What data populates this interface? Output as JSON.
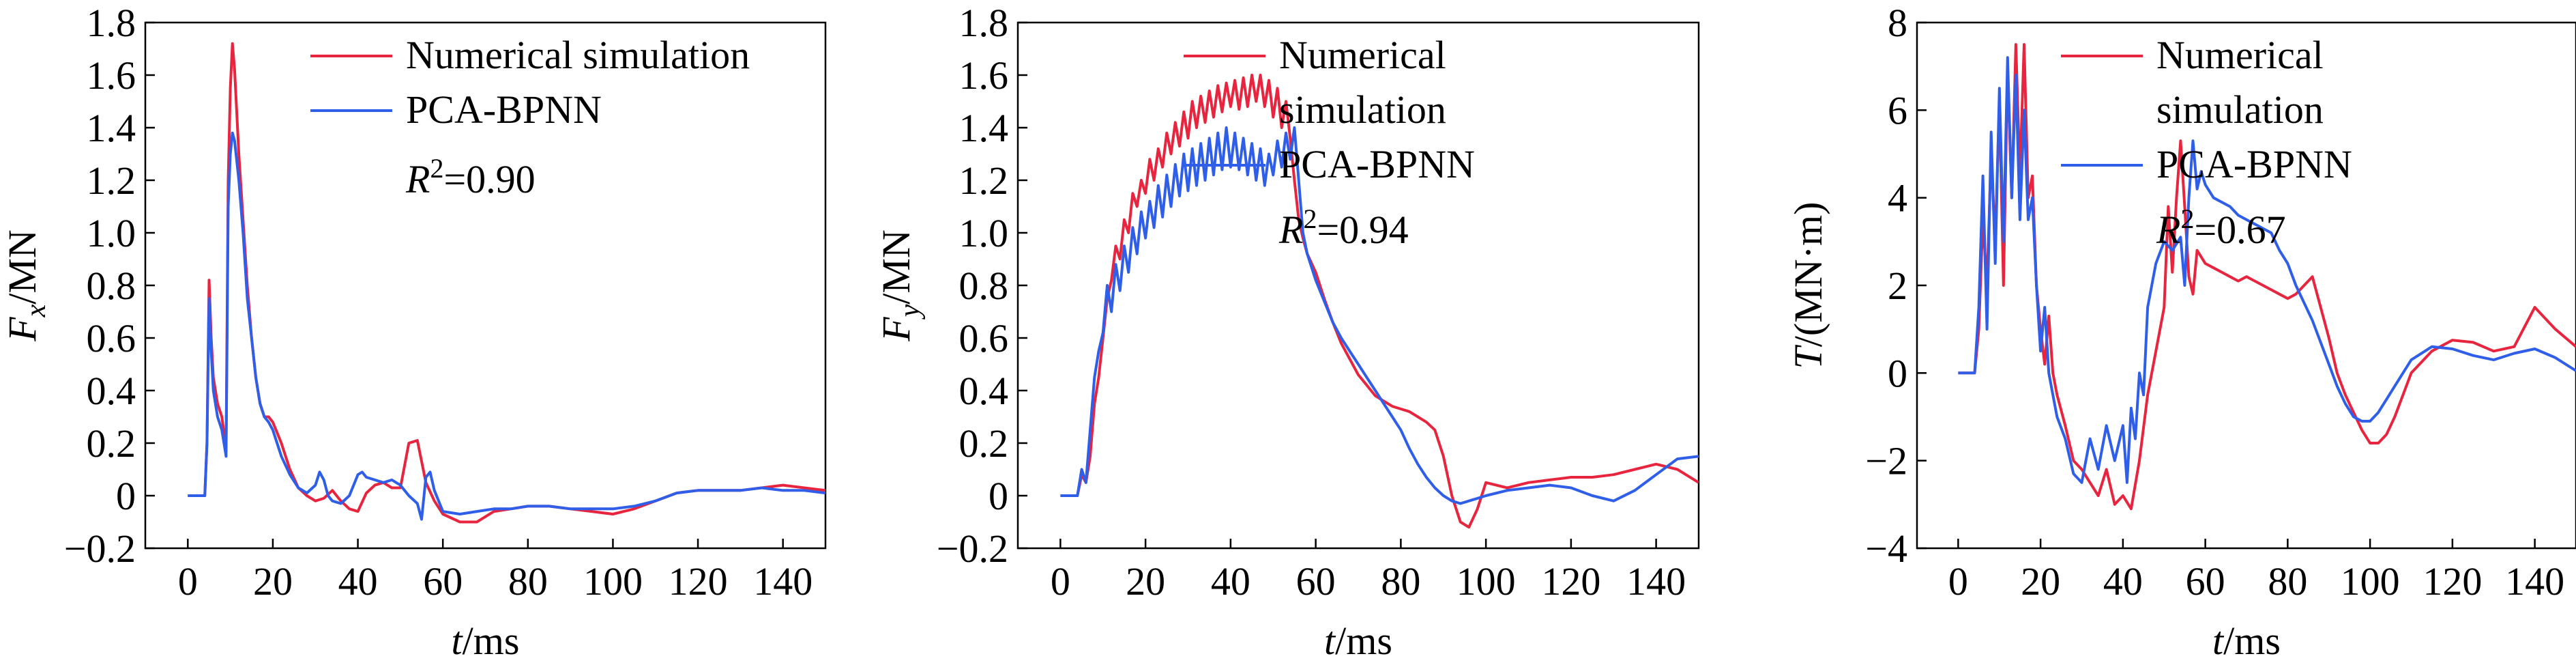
{
  "colors": {
    "simulation": "#e8253f",
    "bpnn": "#2f5ee8",
    "axis": "#000000"
  },
  "chart_data": [
    {
      "type": "line",
      "ylabel": {
        "main": "F",
        "sub": "x",
        "unit": "/MN"
      },
      "xlabel": {
        "main": "t",
        "unit": "/ms"
      },
      "xlim": [
        -10,
        150
      ],
      "ylim": [
        -0.2,
        1.8
      ],
      "xticks": [
        0,
        20,
        40,
        60,
        80,
        100,
        120,
        140
      ],
      "yticks": [
        -0.2,
        0,
        0.2,
        0.4,
        0.6,
        0.8,
        1.0,
        1.2,
        1.4,
        1.6,
        1.8
      ],
      "ytick_labels": [
        "−0.2",
        "0",
        "0.2",
        "0.4",
        "0.6",
        "0.8",
        "1.0",
        "1.2",
        "1.4",
        "1.6",
        "1.8"
      ],
      "legend_position": "top-right",
      "r2": {
        "prefix": "R",
        "sup": "2",
        "value": "=0.90"
      },
      "series": [
        {
          "name": "Numerical simulation",
          "color_key": "simulation",
          "x": [
            0,
            4,
            4.5,
            5,
            5.5,
            6,
            7,
            8,
            9,
            9.5,
            10,
            10.5,
            11,
            12,
            13,
            14,
            15,
            16,
            17,
            18,
            19,
            20,
            22,
            24,
            26,
            28,
            30,
            32,
            34,
            36,
            38,
            40,
            42,
            44,
            46,
            48,
            50,
            52,
            54,
            56,
            58,
            60,
            64,
            68,
            72,
            76,
            80,
            85,
            90,
            95,
            100,
            105,
            110,
            115,
            120,
            125,
            130,
            135,
            140,
            145,
            150
          ],
          "y": [
            0,
            0,
            0.2,
            0.82,
            0.6,
            0.45,
            0.35,
            0.3,
            0.18,
            1.2,
            1.55,
            1.72,
            1.62,
            1.3,
            1.05,
            0.8,
            0.6,
            0.45,
            0.35,
            0.3,
            0.3,
            0.28,
            0.2,
            0.1,
            0.03,
            0.0,
            -0.02,
            -0.01,
            0.02,
            -0.02,
            -0.05,
            -0.06,
            0.01,
            0.04,
            0.05,
            0.03,
            0.03,
            0.2,
            0.21,
            0.05,
            -0.02,
            -0.07,
            -0.1,
            -0.1,
            -0.06,
            -0.05,
            -0.04,
            -0.04,
            -0.05,
            -0.06,
            -0.07,
            -0.05,
            -0.02,
            0.01,
            0.02,
            0.02,
            0.02,
            0.03,
            0.04,
            0.03,
            0.02
          ]
        },
        {
          "name": "PCA-BPNN",
          "color_key": "bpnn",
          "x": [
            0,
            4,
            4.5,
            5,
            5.5,
            6,
            7,
            8,
            9,
            9.5,
            10,
            10.5,
            11,
            12,
            13,
            14,
            15,
            16,
            17,
            18,
            19,
            20,
            22,
            24,
            26,
            28,
            30,
            31,
            32,
            33,
            34,
            36,
            38,
            40,
            41,
            42,
            44,
            46,
            48,
            50,
            52,
            54,
            55,
            56,
            57,
            58,
            60,
            64,
            68,
            72,
            76,
            80,
            85,
            90,
            95,
            100,
            105,
            110,
            115,
            120,
            125,
            130,
            135,
            140,
            145,
            150
          ],
          "y": [
            0,
            0,
            0.2,
            0.75,
            0.55,
            0.4,
            0.3,
            0.25,
            0.15,
            1.1,
            1.3,
            1.38,
            1.35,
            1.2,
            1.0,
            0.75,
            0.6,
            0.45,
            0.35,
            0.3,
            0.28,
            0.25,
            0.15,
            0.08,
            0.03,
            0.01,
            0.04,
            0.09,
            0.06,
            0.0,
            -0.02,
            -0.03,
            0.0,
            0.08,
            0.09,
            0.07,
            0.06,
            0.05,
            0.06,
            0.04,
            0.0,
            -0.03,
            -0.09,
            0.07,
            0.09,
            0.02,
            -0.06,
            -0.07,
            -0.06,
            -0.05,
            -0.05,
            -0.04,
            -0.04,
            -0.05,
            -0.05,
            -0.05,
            -0.04,
            -0.02,
            0.01,
            0.02,
            0.02,
            0.02,
            0.03,
            0.02,
            0.02,
            0.01
          ]
        }
      ]
    },
    {
      "type": "line",
      "ylabel": {
        "main": "F",
        "sub": "y",
        "unit": "/MN"
      },
      "xlabel": {
        "main": "t",
        "unit": "/ms"
      },
      "xlim": [
        -10,
        150
      ],
      "ylim": [
        -0.2,
        1.8
      ],
      "xticks": [
        0,
        20,
        40,
        60,
        80,
        100,
        120,
        140
      ],
      "yticks": [
        -0.2,
        0,
        0.2,
        0.4,
        0.6,
        0.8,
        1.0,
        1.2,
        1.4,
        1.6,
        1.8
      ],
      "ytick_labels": [
        "−0.2",
        "0",
        "0.2",
        "0.4",
        "0.6",
        "0.8",
        "1.0",
        "1.2",
        "1.4",
        "1.6",
        "1.8"
      ],
      "legend_position": "top-right",
      "r2": {
        "prefix": "R",
        "sup": "2",
        "value": "=0.94"
      },
      "series": [
        {
          "name": "Numerical simulation",
          "color_key": "simulation",
          "x": [
            0,
            4,
            5,
            6,
            7,
            8,
            9,
            10,
            11,
            12,
            13,
            14,
            15,
            16,
            17,
            18,
            19,
            20,
            21,
            22,
            23,
            24,
            25,
            26,
            27,
            28,
            29,
            30,
            31,
            32,
            33,
            34,
            35,
            36,
            37,
            38,
            39,
            40,
            41,
            42,
            43,
            44,
            45,
            46,
            47,
            48,
            49,
            50,
            51,
            52,
            53,
            54,
            55,
            56,
            57,
            58,
            60,
            62,
            64,
            66,
            68,
            70,
            72,
            74,
            76,
            78,
            80,
            82,
            84,
            86,
            88,
            90,
            92,
            94,
            96,
            98,
            100,
            105,
            110,
            115,
            120,
            125,
            130,
            135,
            140,
            145,
            150
          ],
          "y": [
            0,
            0,
            0.08,
            0.05,
            0.15,
            0.35,
            0.45,
            0.6,
            0.75,
            0.82,
            0.95,
            0.9,
            1.05,
            1.0,
            1.15,
            1.1,
            1.2,
            1.15,
            1.28,
            1.2,
            1.32,
            1.25,
            1.38,
            1.3,
            1.42,
            1.33,
            1.46,
            1.36,
            1.5,
            1.4,
            1.52,
            1.42,
            1.54,
            1.44,
            1.56,
            1.46,
            1.57,
            1.48,
            1.58,
            1.47,
            1.59,
            1.48,
            1.6,
            1.5,
            1.6,
            1.48,
            1.58,
            1.44,
            1.55,
            1.4,
            1.5,
            1.36,
            1.2,
            1.05,
            0.98,
            0.92,
            0.85,
            0.75,
            0.66,
            0.58,
            0.52,
            0.46,
            0.42,
            0.38,
            0.36,
            0.34,
            0.33,
            0.32,
            0.3,
            0.28,
            0.25,
            0.15,
            0.0,
            -0.1,
            -0.12,
            -0.05,
            0.05,
            0.03,
            0.05,
            0.06,
            0.07,
            0.07,
            0.08,
            0.1,
            0.12,
            0.1,
            0.05
          ]
        },
        {
          "name": "PCA-BPNN",
          "color_key": "bpnn",
          "x": [
            0,
            4,
            5,
            6,
            7,
            8,
            9,
            10,
            11,
            12,
            13,
            14,
            15,
            16,
            17,
            18,
            19,
            20,
            21,
            22,
            23,
            24,
            25,
            26,
            27,
            28,
            29,
            30,
            31,
            32,
            33,
            34,
            35,
            36,
            37,
            38,
            39,
            40,
            41,
            42,
            43,
            44,
            45,
            46,
            47,
            48,
            49,
            50,
            51,
            52,
            53,
            54,
            55,
            56,
            57,
            58,
            60,
            62,
            64,
            66,
            68,
            70,
            72,
            74,
            76,
            78,
            80,
            82,
            84,
            86,
            88,
            90,
            92,
            94,
            96,
            98,
            100,
            105,
            110,
            115,
            120,
            125,
            130,
            135,
            140,
            145,
            150
          ],
          "y": [
            0,
            0,
            0.1,
            0.05,
            0.25,
            0.45,
            0.55,
            0.62,
            0.8,
            0.7,
            0.88,
            0.78,
            0.95,
            0.85,
            1.02,
            0.92,
            1.08,
            0.98,
            1.12,
            1.02,
            1.18,
            1.06,
            1.22,
            1.1,
            1.26,
            1.14,
            1.3,
            1.16,
            1.32,
            1.18,
            1.34,
            1.2,
            1.36,
            1.22,
            1.38,
            1.24,
            1.4,
            1.25,
            1.38,
            1.24,
            1.36,
            1.22,
            1.34,
            1.2,
            1.32,
            1.18,
            1.3,
            1.22,
            1.35,
            1.25,
            1.38,
            1.28,
            1.4,
            1.2,
            1.0,
            0.92,
            0.82,
            0.74,
            0.66,
            0.6,
            0.55,
            0.5,
            0.45,
            0.4,
            0.35,
            0.3,
            0.25,
            0.18,
            0.12,
            0.07,
            0.03,
            0.0,
            -0.02,
            -0.03,
            -0.02,
            -0.01,
            0.0,
            0.02,
            0.03,
            0.04,
            0.03,
            0.0,
            -0.02,
            0.02,
            0.08,
            0.14,
            0.15
          ]
        }
      ]
    },
    {
      "type": "line",
      "ylabel": {
        "main": "T",
        "sub": "",
        "unit": "/(MN·m)"
      },
      "xlabel": {
        "main": "t",
        "unit": "/ms"
      },
      "xlim": [
        -10,
        150
      ],
      "ylim": [
        -4,
        8
      ],
      "xticks": [
        0,
        20,
        40,
        60,
        80,
        100,
        120,
        140
      ],
      "yticks": [
        -4,
        -2,
        0,
        2,
        4,
        6,
        8
      ],
      "ytick_labels": [
        "−4",
        "−2",
        "0",
        "2",
        "4",
        "6",
        "8"
      ],
      "legend_position": "top-right",
      "r2": {
        "prefix": "R",
        "sup": "2",
        "value": "=0.67"
      },
      "series": [
        {
          "name": "Numerical simulation",
          "color_key": "simulation",
          "x": [
            0,
            4,
            5,
            6,
            7,
            8,
            9,
            10,
            11,
            12,
            13,
            14,
            15,
            16,
            17,
            18,
            19,
            20,
            21,
            22,
            23,
            24,
            26,
            28,
            30,
            32,
            34,
            36,
            38,
            40,
            42,
            44,
            46,
            48,
            50,
            51,
            52,
            53,
            54,
            55,
            56,
            57,
            58,
            60,
            62,
            64,
            66,
            68,
            70,
            72,
            74,
            76,
            78,
            80,
            82,
            84,
            86,
            88,
            90,
            92,
            94,
            96,
            98,
            100,
            102,
            104,
            106,
            108,
            110,
            115,
            120,
            125,
            130,
            135,
            140,
            145,
            150
          ],
          "y": [
            0,
            0,
            1.0,
            3.5,
            2.0,
            5.0,
            3.0,
            6.2,
            2.0,
            7.0,
            4.0,
            7.5,
            4.5,
            7.5,
            4.0,
            4.5,
            2.0,
            1.0,
            0.2,
            1.3,
            0.0,
            -0.5,
            -1.2,
            -2.0,
            -2.2,
            -2.5,
            -2.8,
            -2.2,
            -3.0,
            -2.8,
            -3.1,
            -2.0,
            -0.5,
            0.5,
            1.5,
            3.8,
            2.3,
            4.0,
            5.3,
            3.8,
            2.2,
            1.8,
            2.8,
            2.5,
            2.4,
            2.3,
            2.2,
            2.1,
            2.2,
            2.1,
            2.0,
            1.9,
            1.8,
            1.7,
            1.8,
            2.0,
            2.2,
            1.5,
            0.8,
            0.0,
            -0.5,
            -0.9,
            -1.3,
            -1.6,
            -1.6,
            -1.4,
            -1.0,
            -0.5,
            0.0,
            0.5,
            0.75,
            0.7,
            0.5,
            0.6,
            1.5,
            1.0,
            0.6
          ]
        },
        {
          "name": "PCA-BPNN",
          "color_key": "bpnn",
          "x": [
            0,
            4,
            5,
            6,
            7,
            8,
            9,
            10,
            11,
            12,
            13,
            14,
            15,
            16,
            17,
            18,
            19,
            20,
            21,
            22,
            23,
            24,
            26,
            28,
            30,
            32,
            34,
            36,
            38,
            40,
            41,
            42,
            43,
            44,
            45,
            46,
            48,
            50,
            52,
            54,
            55,
            56,
            57,
            58,
            59,
            60,
            62,
            64,
            66,
            68,
            70,
            72,
            74,
            76,
            78,
            80,
            82,
            84,
            86,
            88,
            90,
            92,
            94,
            96,
            98,
            100,
            102,
            104,
            106,
            108,
            110,
            115,
            120,
            125,
            130,
            135,
            140,
            145,
            150
          ],
          "y": [
            0,
            0,
            1.5,
            4.5,
            1.0,
            5.5,
            2.5,
            6.5,
            3.0,
            7.2,
            4.0,
            6.8,
            3.5,
            6.0,
            3.5,
            4.0,
            2.0,
            0.5,
            1.5,
            0.0,
            -0.5,
            -1.0,
            -1.5,
            -2.3,
            -2.5,
            -1.5,
            -2.2,
            -1.2,
            -2.0,
            -1.2,
            -2.5,
            -0.8,
            -1.5,
            0.0,
            -0.5,
            1.5,
            2.5,
            3.0,
            2.8,
            3.1,
            2.0,
            4.0,
            5.3,
            4.2,
            4.6,
            4.3,
            4.0,
            3.9,
            3.8,
            3.6,
            3.5,
            3.4,
            3.3,
            3.2,
            2.8,
            2.5,
            2.0,
            1.6,
            1.2,
            0.7,
            0.2,
            -0.3,
            -0.7,
            -1.0,
            -1.1,
            -1.1,
            -0.9,
            -0.6,
            -0.3,
            0.0,
            0.3,
            0.6,
            0.55,
            0.4,
            0.3,
            0.45,
            0.55,
            0.35,
            0.05
          ]
        }
      ]
    }
  ]
}
